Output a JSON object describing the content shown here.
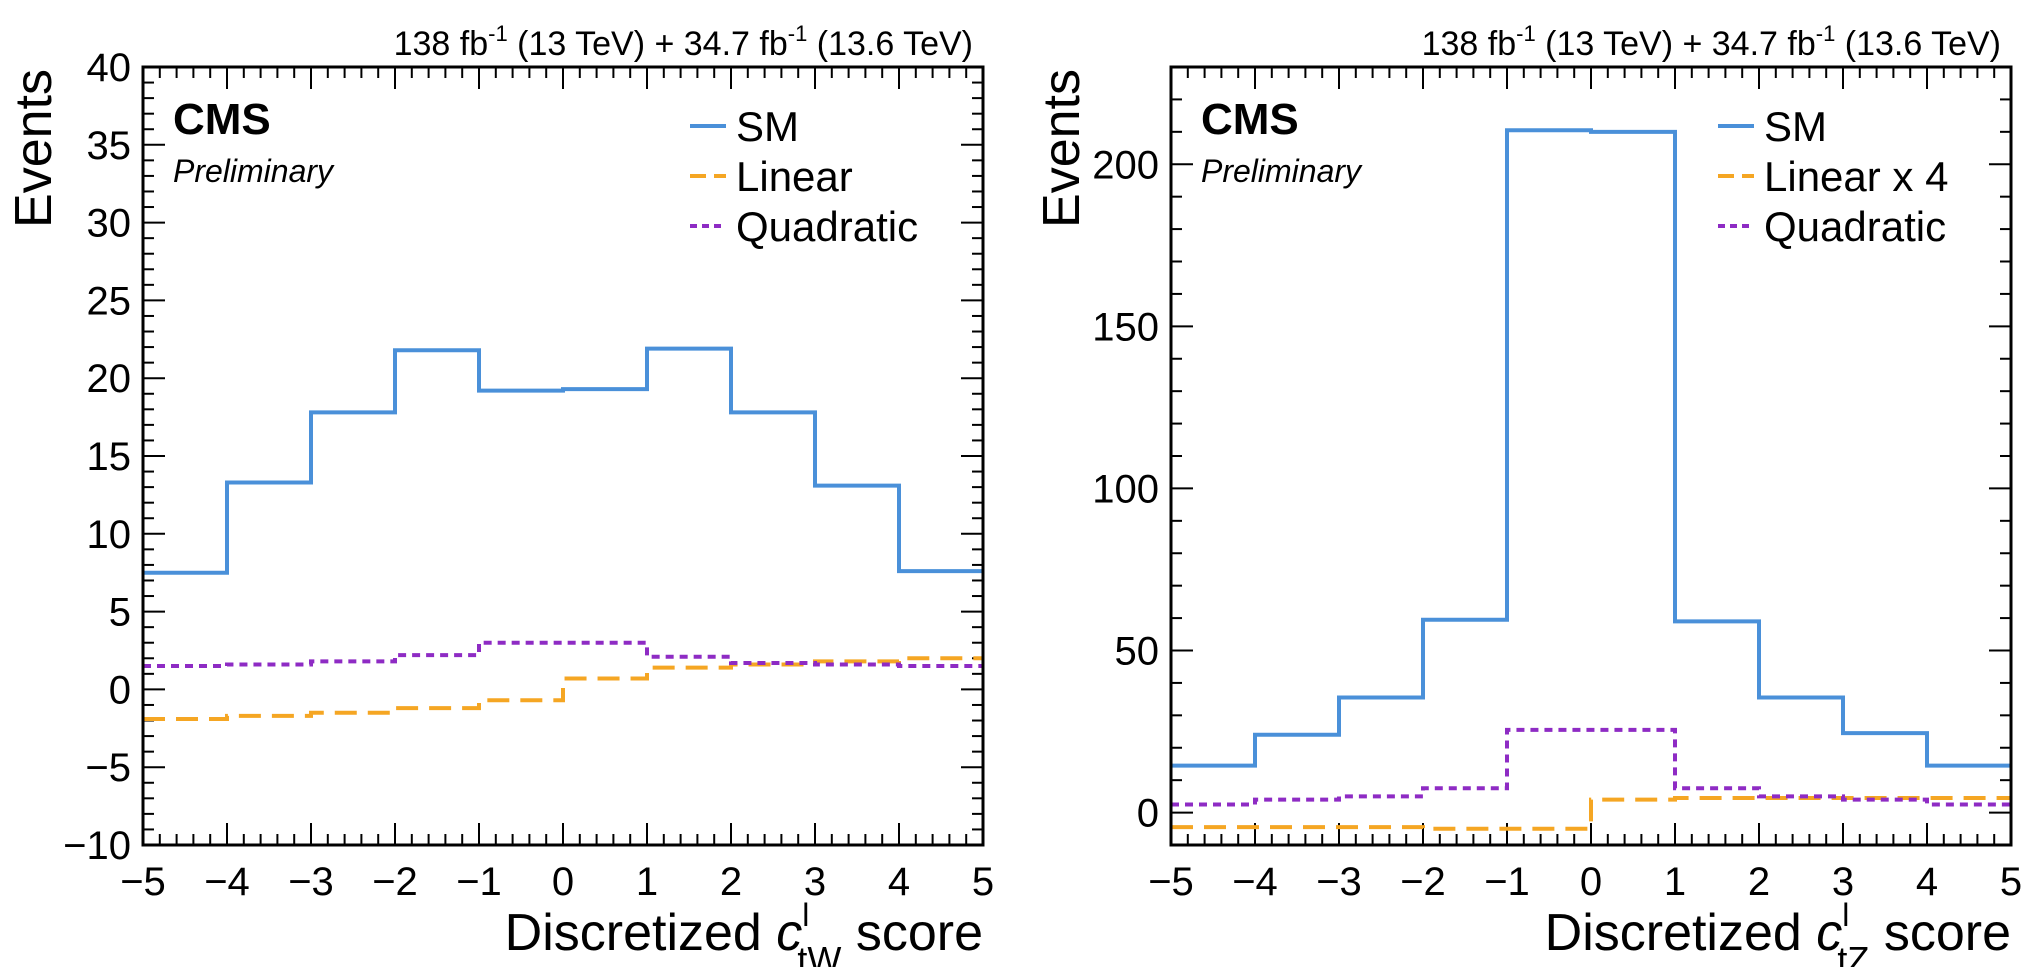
{
  "chart_data": [
    {
      "type": "step",
      "lumi_label": "138 fb^-1 (13 TeV) + 34.7 fb^-1 (13.6 TeV)",
      "lumi": {
        "a": "138 fb",
        "sup1": "-1",
        "b": " (13 TeV) + 34.7 fb",
        "sup2": "-1",
        "c": " (13.6 TeV)"
      },
      "experiment": "CMS",
      "status": "Preliminary",
      "ylabel": "Events",
      "xlabel": {
        "prefix": "Discretized ",
        "symbol": "c",
        "sup": "l",
        "sub": "tW",
        "suffix": " score"
      },
      "xlim": [
        -5,
        5
      ],
      "ylim": [
        -10,
        40
      ],
      "xticks": [
        -5,
        -4,
        -3,
        -2,
        -1,
        0,
        1,
        2,
        3,
        4,
        5
      ],
      "xtick_labels": [
        "−5",
        "−4",
        "−3",
        "−2",
        "−1",
        "0",
        "1",
        "2",
        "3",
        "4",
        "5"
      ],
      "yticks": [
        -10,
        -5,
        0,
        5,
        10,
        15,
        20,
        25,
        30,
        35,
        40
      ],
      "ytick_labels": [
        "−10",
        "−5",
        "0",
        "5",
        "10",
        "15",
        "20",
        "25",
        "30",
        "35",
        "40"
      ],
      "bin_edges": [
        -5,
        -4,
        -3,
        -2,
        -1,
        0,
        1,
        2,
        3,
        4,
        5
      ],
      "series": [
        {
          "name": "SM",
          "color": "#4a90d9",
          "dash": "solid",
          "values": [
            7.5,
            13.3,
            17.8,
            21.8,
            19.2,
            19.3,
            21.9,
            17.8,
            13.1,
            7.6
          ]
        },
        {
          "name": "Linear",
          "color": "#f5a623",
          "dash": "long",
          "values": [
            -1.9,
            -1.7,
            -1.5,
            -1.2,
            -0.7,
            0.7,
            1.4,
            1.6,
            1.8,
            2.0
          ]
        },
        {
          "name": "Quadratic",
          "color": "#8e2bc4",
          "dash": "short",
          "values": [
            1.5,
            1.6,
            1.8,
            2.2,
            3.0,
            3.0,
            2.1,
            1.7,
            1.6,
            1.5
          ]
        }
      ]
    },
    {
      "type": "step",
      "lumi_label": "138 fb^-1 (13 TeV) + 34.7 fb^-1 (13.6 TeV)",
      "lumi": {
        "a": "138 fb",
        "sup1": "-1",
        "b": " (13 TeV) + 34.7 fb",
        "sup2": "-1",
        "c": " (13.6 TeV)"
      },
      "experiment": "CMS",
      "status": "Preliminary",
      "ylabel": "Events",
      "xlabel": {
        "prefix": "Discretized ",
        "symbol": "c",
        "sup": "l",
        "sub": "tZ",
        "suffix": " score"
      },
      "xlim": [
        -5,
        5
      ],
      "ylim": [
        -10,
        230
      ],
      "xticks": [
        -5,
        -4,
        -3,
        -2,
        -1,
        0,
        1,
        2,
        3,
        4,
        5
      ],
      "xtick_labels": [
        "−5",
        "−4",
        "−3",
        "−2",
        "−1",
        "0",
        "1",
        "2",
        "3",
        "4",
        "5"
      ],
      "yticks": [
        0,
        50,
        100,
        150,
        200
      ],
      "ytick_labels": [
        "0",
        "50",
        "100",
        "150",
        "200"
      ],
      "bin_edges": [
        -5,
        -4,
        -3,
        -2,
        -1,
        0,
        1,
        2,
        3,
        4,
        5
      ],
      "series": [
        {
          "name": "SM",
          "color": "#4a90d9",
          "dash": "solid",
          "values": [
            14.5,
            24.0,
            35.5,
            59.5,
            210.5,
            210.0,
            59.0,
            35.5,
            24.5,
            14.5
          ]
        },
        {
          "name": "Linear x 4",
          "color": "#f5a623",
          "dash": "long",
          "values": [
            -4.5,
            -4.5,
            -4.5,
            -5.0,
            -5.0,
            4.0,
            4.5,
            4.5,
            4.5,
            4.5
          ]
        },
        {
          "name": "Quadratic",
          "color": "#8e2bc4",
          "dash": "short",
          "values": [
            2.5,
            4.0,
            5.0,
            7.5,
            25.5,
            25.5,
            7.5,
            5.0,
            4.0,
            2.5
          ]
        }
      ]
    }
  ]
}
